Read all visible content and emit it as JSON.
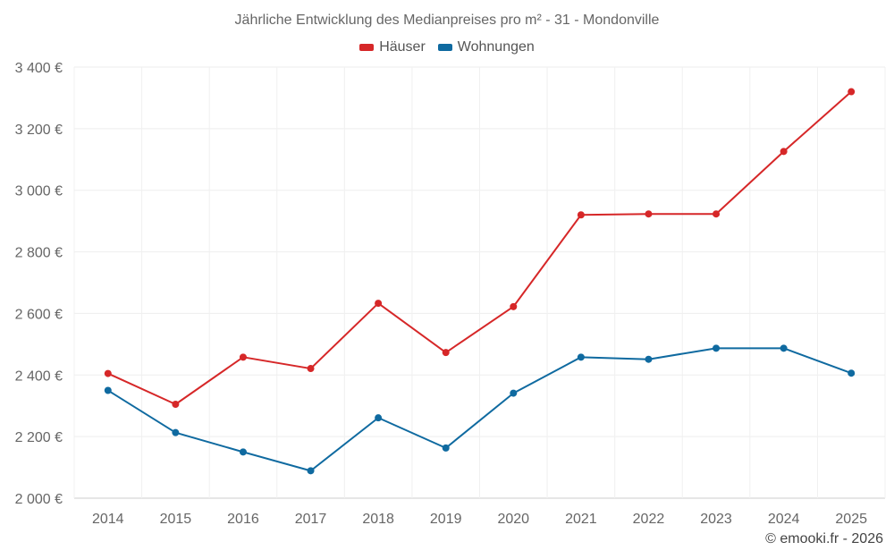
{
  "chart_data": {
    "type": "line",
    "title": "Jährliche Entwicklung des Medianpreises pro m² - 31 - Mondonville",
    "categories": [
      "2014",
      "2015",
      "2016",
      "2017",
      "2018",
      "2019",
      "2020",
      "2021",
      "2022",
      "2023",
      "2024",
      "2025"
    ],
    "series": [
      {
        "name": "Häuser",
        "color": "#d62728",
        "values": [
          2405,
          2305,
          2458,
          2421,
          2633,
          2473,
          2622,
          2920,
          2923,
          2923,
          3126,
          3320
        ]
      },
      {
        "name": "Wohnungen",
        "color": "#0f6aa0",
        "values": [
          2350,
          2213,
          2150,
          2089,
          2261,
          2163,
          2341,
          2458,
          2451,
          2487,
          2487,
          2406
        ]
      }
    ],
    "ylim": [
      2000,
      3400
    ],
    "yticks": [
      2000,
      2200,
      2400,
      2600,
      2800,
      3000,
      3200,
      3400
    ],
    "ytick_labels": [
      "2 000 €",
      "2 200 €",
      "2 400 €",
      "2 600 €",
      "2 800 €",
      "3 000 €",
      "3 200 €",
      "3 400 €"
    ],
    "xlabel": "",
    "ylabel": "",
    "grid": true,
    "legend_position": "top-center"
  },
  "credit": "© emooki.fr - 2026"
}
